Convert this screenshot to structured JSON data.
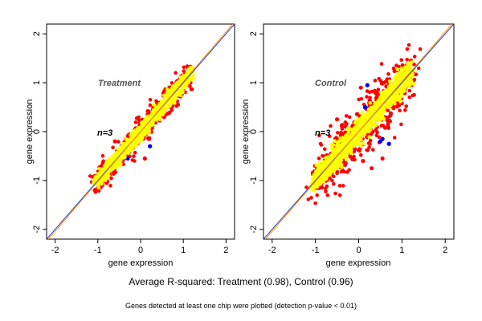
{
  "colors": {
    "yellow_points": "#ffff00",
    "red_points": "#ff0000",
    "blue_points": "#0000ff",
    "diagonal_line": "#1f3fbf",
    "fit_line": "#ff8c00",
    "axis": "#000000"
  },
  "chart_data": [
    {
      "type": "scatter",
      "title": "",
      "annotation_title": "Treatment",
      "annotation_n": "n=3",
      "xlabel": "gene expression",
      "ylabel": "gene expression",
      "xlim": [
        -2.2,
        2.2
      ],
      "ylim": [
        -2.2,
        2.2
      ],
      "xticks": [
        "-2",
        "-1",
        "0",
        "1",
        "2"
      ],
      "yticks": [
        "-2",
        "-1",
        "0",
        "1",
        "2"
      ],
      "x_range": [
        -1.05,
        1.2
      ],
      "spread": {
        "red": 0.13,
        "yellow": 0.07
      },
      "outliers_blue": [
        [
          0.8,
          0.7
        ],
        [
          0.22,
          -0.3
        ],
        [
          -0.4,
          -0.5
        ],
        [
          -0.3,
          -0.55
        ],
        [
          0.75,
          0.62
        ],
        [
          1.0,
          0.95
        ]
      ],
      "outliers_red": [
        [
          0.1,
          -0.55
        ],
        [
          -0.3,
          -0.4
        ],
        [
          0.55,
          0.3
        ],
        [
          -0.6,
          -0.2
        ],
        [
          0.2,
          -0.15
        ],
        [
          0.9,
          0.85
        ]
      ],
      "lines": [
        "identity",
        "fit"
      ]
    },
    {
      "type": "scatter",
      "title": "",
      "annotation_title": "Control",
      "annotation_n": "n=3",
      "xlabel": "gene expression",
      "ylabel": "gene expression",
      "xlim": [
        -2.2,
        2.2
      ],
      "ylim": [
        -2.2,
        2.2
      ],
      "xticks": [
        "-2",
        "-1",
        "0",
        "1",
        "2"
      ],
      "yticks": [
        "-2",
        "-1",
        "0",
        "1",
        "2"
      ],
      "x_range": [
        -1.05,
        1.2
      ],
      "spread": {
        "red": 0.26,
        "yellow": 0.11
      },
      "outliers_blue": [
        [
          0.2,
          0.95
        ],
        [
          0.55,
          0.55
        ],
        [
          0.55,
          -0.15
        ],
        [
          0.5,
          -0.2
        ],
        [
          0.7,
          -0.25
        ],
        [
          0.15,
          0.5
        ],
        [
          -0.6,
          -0.55
        ]
      ],
      "outliers_red": [
        [
          0.3,
          -0.75
        ],
        [
          0.55,
          -0.55
        ],
        [
          -0.5,
          0.25
        ],
        [
          -0.3,
          0.1
        ],
        [
          0.05,
          0.9
        ],
        [
          0.1,
          -0.6
        ],
        [
          0.7,
          0.95
        ]
      ],
      "lines": [
        "identity",
        "fit"
      ]
    }
  ],
  "footer": {
    "summary": "Average R-squared: Treatment (0.98), Control (0.96)",
    "note": "Genes detected at least one chip were plotted (detection p-value < 0.01)"
  }
}
